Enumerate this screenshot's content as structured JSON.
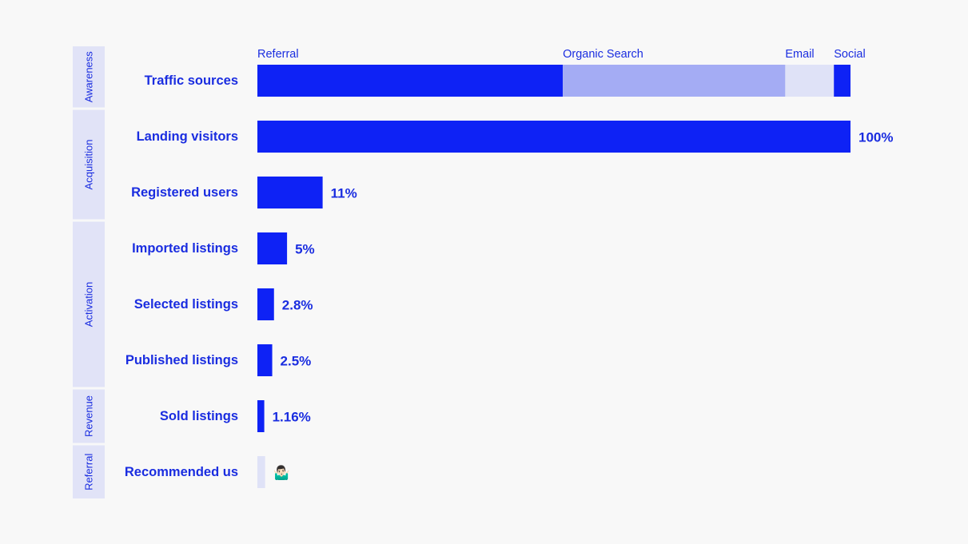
{
  "chart_data": {
    "type": "bar",
    "orientation": "horizontal",
    "title": "",
    "xlabel": "",
    "ylabel": "",
    "xlim": [
      0,
      100
    ],
    "stages": [
      {
        "name": "Awareness",
        "rows": [
          0
        ]
      },
      {
        "name": "Acquisition",
        "rows": [
          1,
          2
        ]
      },
      {
        "name": "Activation",
        "rows": [
          3,
          4,
          5
        ]
      },
      {
        "name": "Revenue",
        "rows": [
          6
        ]
      },
      {
        "name": "Referral",
        "rows": [
          7
        ]
      }
    ],
    "stacked_row": {
      "category": "Traffic sources",
      "segments": [
        {
          "name": "Referral",
          "value": 51.5,
          "color": "#0e22f5"
        },
        {
          "name": "Organic Search",
          "value": 37.5,
          "color": "#a4acf4"
        },
        {
          "name": "Email",
          "value": 8.2,
          "color": "#dfe2f7"
        },
        {
          "name": "Social",
          "value": 2.8,
          "color": "#0e22f5"
        }
      ]
    },
    "categories": [
      "Landing visitors",
      "Registered users",
      "Imported listings",
      "Selected listings",
      "Published listings",
      "Sold listings",
      "Recommended us"
    ],
    "values": [
      100,
      11,
      5,
      2.8,
      2.5,
      1.16,
      1.3
    ],
    "value_labels": [
      "100%",
      "11%",
      "5%",
      "2.8%",
      "2.5%",
      "1.16%",
      "🤷🏻‍♂️"
    ],
    "bar_colors": [
      "#0e22f5",
      "#0e22f5",
      "#0e22f5",
      "#0e22f5",
      "#0e22f5",
      "#0e22f5",
      "#dfe2f7"
    ]
  },
  "colors": {
    "primary": "#0e22f5",
    "text": "#1a2de0",
    "stage_band": "#e1e3f7",
    "background": "#f8f8f8"
  }
}
